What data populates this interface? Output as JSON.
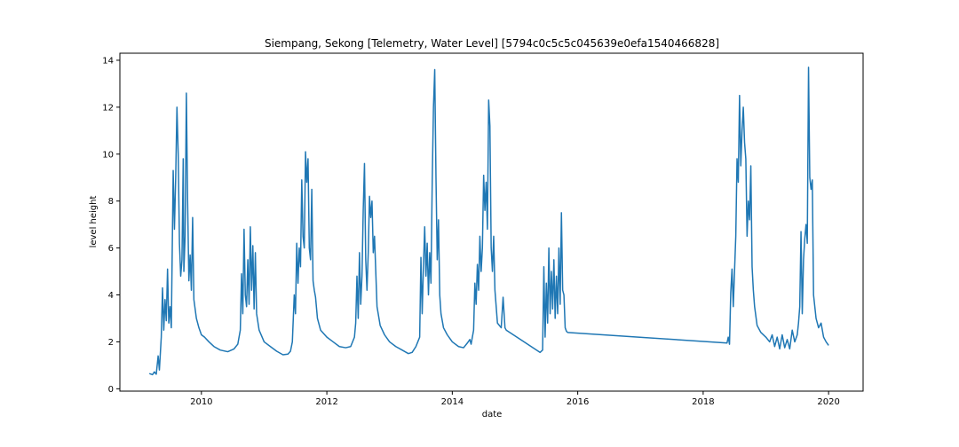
{
  "chart_data": {
    "type": "line",
    "title": "Siempang, Sekong [Telemetry, Water Level] [5794c0c5c5c045639e0efa1540466828]",
    "xlabel": "date",
    "ylabel": "level height",
    "xlim": [
      2008.7,
      2020.55
    ],
    "ylim": [
      -0.1,
      14.3
    ],
    "x_ticks": [
      2010,
      2012,
      2014,
      2016,
      2018,
      2020
    ],
    "x_tick_labels": [
      "2010",
      "2012",
      "2014",
      "2016",
      "2018",
      "2020"
    ],
    "y_ticks": [
      0,
      2,
      4,
      6,
      8,
      10,
      12,
      14
    ],
    "y_tick_labels": [
      "0",
      "2",
      "4",
      "6",
      "8",
      "10",
      "12",
      "14"
    ],
    "grid": false,
    "series": [
      {
        "color": "#1f77b4",
        "points": [
          [
            2009.17,
            0.65
          ],
          [
            2009.22,
            0.6
          ],
          [
            2009.25,
            0.72
          ],
          [
            2009.28,
            0.62
          ],
          [
            2009.31,
            1.4
          ],
          [
            2009.33,
            0.8
          ],
          [
            2009.36,
            2.2
          ],
          [
            2009.38,
            4.3
          ],
          [
            2009.4,
            2.5
          ],
          [
            2009.42,
            3.8
          ],
          [
            2009.44,
            2.9
          ],
          [
            2009.46,
            5.1
          ],
          [
            2009.48,
            2.8
          ],
          [
            2009.5,
            3.5
          ],
          [
            2009.52,
            2.6
          ],
          [
            2009.55,
            9.3
          ],
          [
            2009.57,
            6.8
          ],
          [
            2009.59,
            9.0
          ],
          [
            2009.61,
            12.0
          ],
          [
            2009.63,
            10.0
          ],
          [
            2009.65,
            6.2
          ],
          [
            2009.67,
            4.8
          ],
          [
            2009.69,
            5.5
          ],
          [
            2009.71,
            9.8
          ],
          [
            2009.72,
            5.0
          ],
          [
            2009.74,
            6.5
          ],
          [
            2009.76,
            12.6
          ],
          [
            2009.78,
            8.0
          ],
          [
            2009.8,
            4.6
          ],
          [
            2009.82,
            5.7
          ],
          [
            2009.84,
            4.2
          ],
          [
            2009.86,
            7.3
          ],
          [
            2009.88,
            3.8
          ],
          [
            2009.92,
            3.0
          ],
          [
            2009.96,
            2.6
          ],
          [
            2010.0,
            2.3
          ],
          [
            2010.05,
            2.2
          ],
          [
            2010.12,
            2.0
          ],
          [
            2010.2,
            1.8
          ],
          [
            2010.3,
            1.65
          ],
          [
            2010.42,
            1.58
          ],
          [
            2010.52,
            1.7
          ],
          [
            2010.58,
            1.9
          ],
          [
            2010.62,
            2.5
          ],
          [
            2010.64,
            4.9
          ],
          [
            2010.66,
            3.2
          ],
          [
            2010.68,
            6.8
          ],
          [
            2010.7,
            4.0
          ],
          [
            2010.72,
            3.5
          ],
          [
            2010.74,
            5.5
          ],
          [
            2010.76,
            3.6
          ],
          [
            2010.78,
            6.9
          ],
          [
            2010.8,
            4.2
          ],
          [
            2010.82,
            6.1
          ],
          [
            2010.84,
            3.4
          ],
          [
            2010.86,
            5.8
          ],
          [
            2010.88,
            3.2
          ],
          [
            2010.92,
            2.5
          ],
          [
            2011.0,
            2.0
          ],
          [
            2011.1,
            1.8
          ],
          [
            2011.2,
            1.6
          ],
          [
            2011.3,
            1.45
          ],
          [
            2011.38,
            1.48
          ],
          [
            2011.42,
            1.6
          ],
          [
            2011.45,
            2.0
          ],
          [
            2011.48,
            4.0
          ],
          [
            2011.5,
            3.2
          ],
          [
            2011.52,
            6.2
          ],
          [
            2011.54,
            4.5
          ],
          [
            2011.56,
            6.0
          ],
          [
            2011.58,
            5.2
          ],
          [
            2011.6,
            8.9
          ],
          [
            2011.62,
            6.5
          ],
          [
            2011.64,
            6.0
          ],
          [
            2011.66,
            10.1
          ],
          [
            2011.68,
            8.8
          ],
          [
            2011.7,
            9.8
          ],
          [
            2011.72,
            6.0
          ],
          [
            2011.74,
            5.5
          ],
          [
            2011.76,
            8.5
          ],
          [
            2011.78,
            4.6
          ],
          [
            2011.8,
            4.2
          ],
          [
            2011.82,
            3.9
          ],
          [
            2011.85,
            3.0
          ],
          [
            2011.9,
            2.5
          ],
          [
            2012.0,
            2.2
          ],
          [
            2012.1,
            2.0
          ],
          [
            2012.2,
            1.8
          ],
          [
            2012.3,
            1.75
          ],
          [
            2012.38,
            1.8
          ],
          [
            2012.44,
            2.2
          ],
          [
            2012.46,
            2.8
          ],
          [
            2012.48,
            4.8
          ],
          [
            2012.5,
            3.0
          ],
          [
            2012.52,
            5.8
          ],
          [
            2012.54,
            3.6
          ],
          [
            2012.56,
            4.8
          ],
          [
            2012.58,
            7.6
          ],
          [
            2012.6,
            9.6
          ],
          [
            2012.62,
            5.5
          ],
          [
            2012.64,
            4.2
          ],
          [
            2012.66,
            5.8
          ],
          [
            2012.68,
            8.2
          ],
          [
            2012.7,
            7.3
          ],
          [
            2012.72,
            8.0
          ],
          [
            2012.74,
            5.8
          ],
          [
            2012.76,
            6.5
          ],
          [
            2012.78,
            5.0
          ],
          [
            2012.8,
            3.5
          ],
          [
            2012.85,
            2.7
          ],
          [
            2012.92,
            2.3
          ],
          [
            2013.0,
            2.0
          ],
          [
            2013.1,
            1.8
          ],
          [
            2013.2,
            1.65
          ],
          [
            2013.3,
            1.5
          ],
          [
            2013.36,
            1.55
          ],
          [
            2013.42,
            1.8
          ],
          [
            2013.45,
            2.0
          ],
          [
            2013.48,
            2.2
          ],
          [
            2013.5,
            5.6
          ],
          [
            2013.52,
            3.2
          ],
          [
            2013.54,
            5.2
          ],
          [
            2013.56,
            6.9
          ],
          [
            2013.58,
            4.8
          ],
          [
            2013.6,
            6.2
          ],
          [
            2013.62,
            4.0
          ],
          [
            2013.64,
            5.8
          ],
          [
            2013.66,
            4.5
          ],
          [
            2013.68,
            8.8
          ],
          [
            2013.7,
            12.0
          ],
          [
            2013.72,
            13.6
          ],
          [
            2013.74,
            9.0
          ],
          [
            2013.76,
            5.5
          ],
          [
            2013.78,
            7.2
          ],
          [
            2013.8,
            4.0
          ],
          [
            2013.82,
            3.2
          ],
          [
            2013.86,
            2.6
          ],
          [
            2013.92,
            2.3
          ],
          [
            2014.0,
            2.0
          ],
          [
            2014.1,
            1.8
          ],
          [
            2014.18,
            1.75
          ],
          [
            2014.24,
            1.95
          ],
          [
            2014.28,
            2.1
          ],
          [
            2014.3,
            1.9
          ],
          [
            2014.34,
            2.5
          ],
          [
            2014.36,
            4.5
          ],
          [
            2014.38,
            3.6
          ],
          [
            2014.4,
            5.3
          ],
          [
            2014.42,
            4.2
          ],
          [
            2014.44,
            6.5
          ],
          [
            2014.46,
            5.0
          ],
          [
            2014.48,
            6.0
          ],
          [
            2014.5,
            9.1
          ],
          [
            2014.52,
            7.6
          ],
          [
            2014.54,
            8.8
          ],
          [
            2014.56,
            6.8
          ],
          [
            2014.58,
            12.3
          ],
          [
            2014.6,
            11.2
          ],
          [
            2014.62,
            6.0
          ],
          [
            2014.64,
            5.0
          ],
          [
            2014.66,
            6.5
          ],
          [
            2014.68,
            4.2
          ],
          [
            2014.72,
            2.8
          ],
          [
            2014.78,
            2.6
          ],
          [
            2014.81,
            3.9
          ],
          [
            2014.84,
            2.6
          ],
          [
            2014.86,
            2.5
          ],
          [
            2015.4,
            1.55
          ],
          [
            2015.44,
            1.65
          ],
          [
            2015.46,
            5.2
          ],
          [
            2015.48,
            2.2
          ],
          [
            2015.5,
            4.5
          ],
          [
            2015.52,
            2.8
          ],
          [
            2015.54,
            6.0
          ],
          [
            2015.56,
            3.2
          ],
          [
            2015.58,
            5.0
          ],
          [
            2015.6,
            3.4
          ],
          [
            2015.62,
            5.5
          ],
          [
            2015.64,
            3.0
          ],
          [
            2015.66,
            4.8
          ],
          [
            2015.68,
            3.2
          ],
          [
            2015.7,
            6.0
          ],
          [
            2015.72,
            3.6
          ],
          [
            2015.74,
            7.5
          ],
          [
            2015.76,
            4.2
          ],
          [
            2015.78,
            4.0
          ],
          [
            2015.8,
            2.6
          ],
          [
            2015.82,
            2.45
          ],
          [
            2015.84,
            2.4
          ],
          [
            2018.38,
            1.95
          ],
          [
            2018.4,
            2.2
          ],
          [
            2018.42,
            1.9
          ],
          [
            2018.44,
            4.1
          ],
          [
            2018.46,
            5.1
          ],
          [
            2018.48,
            3.5
          ],
          [
            2018.5,
            5.0
          ],
          [
            2018.52,
            6.5
          ],
          [
            2018.54,
            9.8
          ],
          [
            2018.56,
            8.8
          ],
          [
            2018.58,
            12.5
          ],
          [
            2018.6,
            9.5
          ],
          [
            2018.62,
            11.0
          ],
          [
            2018.64,
            12.0
          ],
          [
            2018.66,
            10.5
          ],
          [
            2018.68,
            9.8
          ],
          [
            2018.7,
            6.5
          ],
          [
            2018.72,
            8.0
          ],
          [
            2018.74,
            7.2
          ],
          [
            2018.76,
            9.5
          ],
          [
            2018.78,
            5.2
          ],
          [
            2018.8,
            4.2
          ],
          [
            2018.82,
            3.5
          ],
          [
            2018.86,
            2.7
          ],
          [
            2018.92,
            2.4
          ],
          [
            2019.0,
            2.2
          ],
          [
            2019.06,
            2.0
          ],
          [
            2019.1,
            2.3
          ],
          [
            2019.14,
            1.8
          ],
          [
            2019.18,
            2.2
          ],
          [
            2019.22,
            1.7
          ],
          [
            2019.26,
            2.3
          ],
          [
            2019.3,
            1.75
          ],
          [
            2019.34,
            2.1
          ],
          [
            2019.38,
            1.7
          ],
          [
            2019.42,
            2.5
          ],
          [
            2019.46,
            2.0
          ],
          [
            2019.5,
            2.3
          ],
          [
            2019.52,
            2.8
          ],
          [
            2019.54,
            3.5
          ],
          [
            2019.56,
            6.7
          ],
          [
            2019.58,
            3.2
          ],
          [
            2019.6,
            5.5
          ],
          [
            2019.62,
            6.4
          ],
          [
            2019.64,
            7.0
          ],
          [
            2019.66,
            6.2
          ],
          [
            2019.68,
            13.7
          ],
          [
            2019.7,
            9.0
          ],
          [
            2019.72,
            8.5
          ],
          [
            2019.74,
            8.9
          ],
          [
            2019.76,
            4.0
          ],
          [
            2019.8,
            3.0
          ],
          [
            2019.84,
            2.6
          ],
          [
            2019.88,
            2.8
          ],
          [
            2019.92,
            2.2
          ],
          [
            2019.96,
            2.0
          ],
          [
            2020.0,
            1.85
          ]
        ]
      }
    ]
  }
}
